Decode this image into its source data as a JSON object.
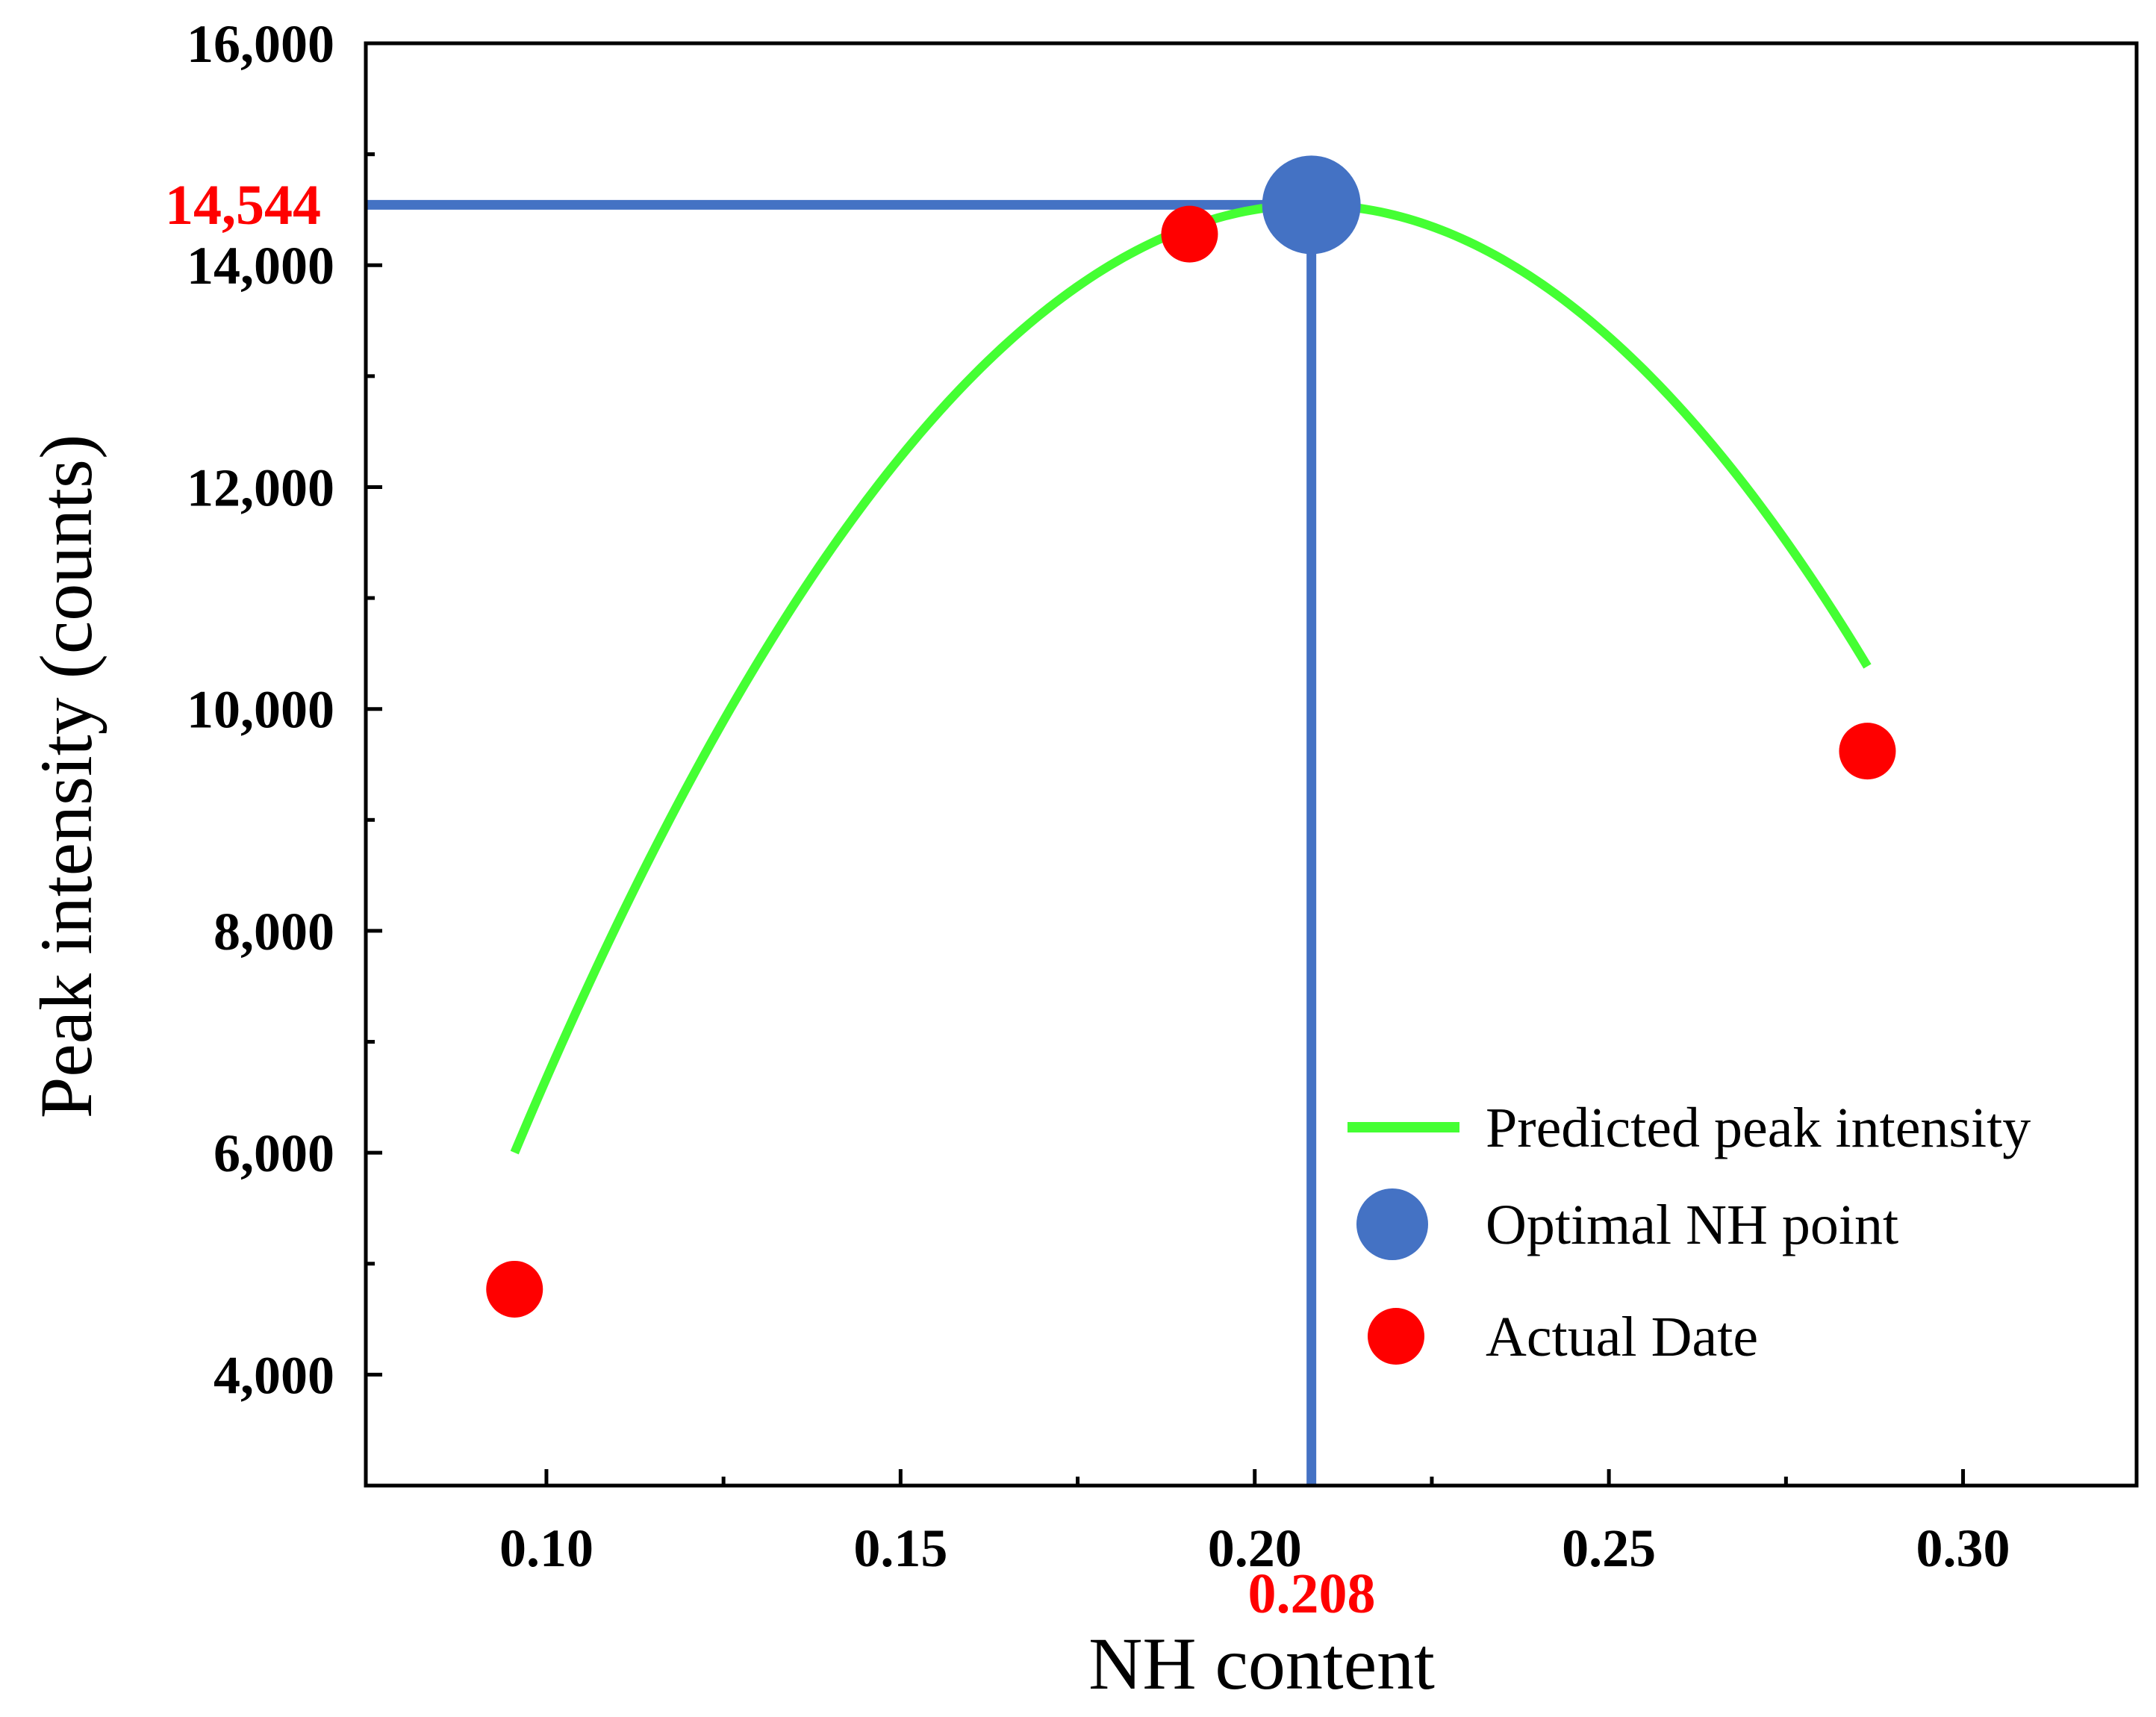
{
  "chart_data": {
    "type": "line",
    "xlabel": "NH content",
    "ylabel": "Peak intensity (counts)",
    "xlim": [
      0.0745,
      0.3245
    ],
    "ylim": [
      3000,
      16000
    ],
    "x_ticks": [
      0.1,
      0.15,
      0.2,
      0.25,
      0.3
    ],
    "x_tick_labels": [
      "0.10",
      "0.15",
      "0.20",
      "0.25",
      "0.30"
    ],
    "y_ticks": [
      4000,
      6000,
      8000,
      10000,
      12000,
      14000,
      16000
    ],
    "y_tick_labels": [
      "4,000",
      "6,000",
      "8,000",
      "10,000",
      "12,000",
      "14,000",
      "16,000"
    ],
    "series": [
      {
        "name": "Predicted peak intensity",
        "kind": "curve",
        "color": "#44ff33",
        "x_range": [
          0.0955,
          0.2865
        ],
        "vertex": {
          "x": 0.208,
          "y": 14544
        },
        "curvature": -675000
      },
      {
        "name": "Optimal NH point",
        "kind": "point",
        "color": "#4472c4",
        "points": [
          {
            "x": 0.208,
            "y": 14544
          }
        ]
      },
      {
        "name": "Actual Date",
        "kind": "point",
        "color": "#ff0000",
        "points": [
          {
            "x": 0.0955,
            "y": 4770
          },
          {
            "x": 0.1908,
            "y": 14280
          },
          {
            "x": 0.2865,
            "y": 9620
          }
        ]
      }
    ],
    "reference_lines": {
      "color": "#4472c4",
      "horizontal_y": 14544,
      "vertical_x": 0.208
    },
    "annotations": {
      "y_value_label": "14,544",
      "x_value_label": "0.208",
      "color": "#ff0000"
    },
    "legend": {
      "position": "bottom-right",
      "items": [
        {
          "label": "Predicted peak intensity",
          "marker": "line",
          "color": "#44ff33"
        },
        {
          "label": "Optimal NH point",
          "marker": "circle-large",
          "color": "#4472c4"
        },
        {
          "label": "Actual Date",
          "marker": "circle",
          "color": "#ff0000"
        }
      ]
    }
  }
}
